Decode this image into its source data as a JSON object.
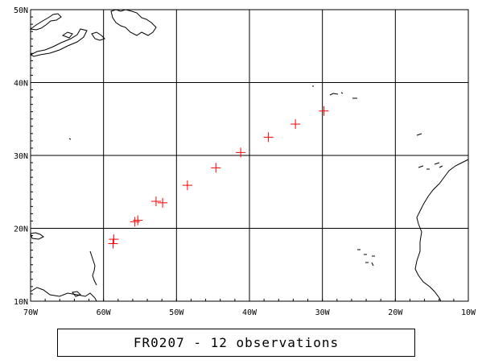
{
  "map": {
    "x_ticks": [
      "70W",
      "60W",
      "50W",
      "40W",
      "30W",
      "20W",
      "10W"
    ],
    "y_ticks": [
      "50N",
      "40N",
      "30N",
      "20N",
      "10N"
    ],
    "lon_range": [
      -70,
      -10
    ],
    "lat_range": [
      10,
      50
    ],
    "grid": true,
    "marker_color": "#ff0000",
    "marker": "plus"
  },
  "caption": "FR0207 - 12 observations",
  "chart_data": {
    "type": "scatter",
    "title": "FR0207 - 12 observations",
    "xlim": [
      -70,
      -10
    ],
    "ylim": [
      10,
      50
    ],
    "x": [
      -58.6,
      -58.7,
      -55.7,
      -55.3,
      -52.8,
      -51.9,
      -48.5,
      -44.6,
      -41.2,
      -37.4,
      -33.7,
      -29.8
    ],
    "y": [
      18.5,
      17.9,
      20.9,
      21.1,
      23.7,
      23.5,
      25.9,
      28.3,
      30.4,
      32.5,
      34.3,
      36.1
    ]
  }
}
